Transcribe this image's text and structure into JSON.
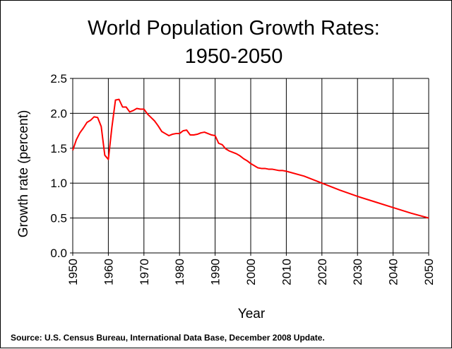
{
  "chart_data": {
    "type": "line",
    "title": "World Population Growth Rates:",
    "subtitle": "1950-2050",
    "xlabel": "Year",
    "ylabel": "Growth rate (percent)",
    "xlim": [
      1950,
      2050
    ],
    "ylim": [
      0,
      2.5
    ],
    "x_ticks": [
      "1950",
      "1960",
      "1970",
      "1980",
      "1990",
      "2000",
      "2010",
      "2020",
      "2030",
      "2040",
      "2050"
    ],
    "y_ticks": [
      "0.0",
      "0.5",
      "1.0",
      "1.5",
      "2.0",
      "2.5"
    ],
    "grid": true,
    "series_color": "#ff0000",
    "series": [
      {
        "x": [
          1950,
          1951,
          1952,
          1953,
          1954,
          1955,
          1956,
          1957,
          1958,
          1959,
          1960,
          1961,
          1962,
          1963,
          1964,
          1965,
          1966,
          1967,
          1968,
          1969,
          1970,
          1971,
          1972,
          1973,
          1974,
          1975,
          1976,
          1977,
          1978,
          1979,
          1980,
          1981,
          1982,
          1983,
          1984,
          1985,
          1986,
          1987,
          1988,
          1989,
          1990,
          1991,
          1992,
          1993,
          1994,
          1995,
          1996,
          1997,
          1998,
          1999,
          2000,
          2001,
          2002,
          2003,
          2004,
          2005,
          2006,
          2007,
          2008,
          2009,
          2010,
          2015,
          2020,
          2025,
          2030,
          2035,
          2040,
          2045,
          2050
        ],
        "y": [
          1.47,
          1.62,
          1.72,
          1.79,
          1.87,
          1.9,
          1.95,
          1.94,
          1.81,
          1.4,
          1.34,
          1.8,
          2.19,
          2.2,
          2.09,
          2.09,
          2.02,
          2.04,
          2.07,
          2.06,
          2.06,
          1.99,
          1.94,
          1.89,
          1.82,
          1.74,
          1.71,
          1.68,
          1.7,
          1.71,
          1.71,
          1.75,
          1.76,
          1.69,
          1.69,
          1.7,
          1.72,
          1.73,
          1.71,
          1.69,
          1.68,
          1.57,
          1.55,
          1.49,
          1.46,
          1.44,
          1.42,
          1.39,
          1.35,
          1.32,
          1.28,
          1.25,
          1.22,
          1.21,
          1.21,
          1.2,
          1.2,
          1.19,
          1.18,
          1.18,
          1.17,
          1.1,
          1.0,
          0.9,
          0.81,
          0.73,
          0.65,
          0.57,
          0.5
        ]
      }
    ]
  },
  "source": "Source: U.S. Census Bureau, International Data Base, December 2008 Update."
}
